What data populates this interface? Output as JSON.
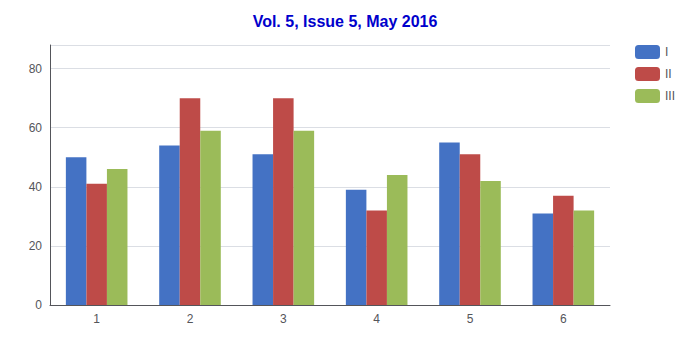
{
  "chart_data": {
    "type": "bar",
    "title": "Vol. 5, Issue 5, May 2016",
    "title_color": "#0000CC",
    "categories": [
      "1",
      "2",
      "3",
      "4",
      "5",
      "6"
    ],
    "series": [
      {
        "name": "I",
        "color": "#4472C4",
        "values": [
          50,
          54,
          51,
          39,
          55,
          31
        ]
      },
      {
        "name": "II",
        "color": "#BE4B48",
        "values": [
          41,
          70,
          70,
          32,
          51,
          37
        ]
      },
      {
        "name": "III",
        "color": "#9BBB59",
        "values": [
          46,
          59,
          59,
          44,
          42,
          32
        ]
      }
    ],
    "ylim": [
      0,
      88
    ],
    "yticks": [
      0,
      20,
      40,
      60,
      80
    ],
    "grid": true,
    "legend": "right"
  }
}
